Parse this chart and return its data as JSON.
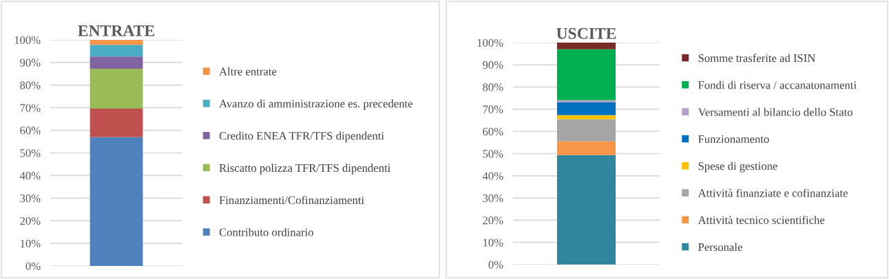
{
  "chart_data": [
    {
      "type": "bar",
      "title": "ENTRATE",
      "stacked": true,
      "categories": [
        null
      ],
      "series": [
        {
          "name": "Contributo ordinario",
          "color": "#4f81bd",
          "values": [
            57
          ]
        },
        {
          "name": "Finanziamenti/Cofinanziamenti",
          "color": "#c0504d",
          "values": [
            12.6
          ]
        },
        {
          "name": "Riscatto polizza TFR/TFS dipendenti",
          "color": "#9bbb59",
          "values": [
            17.6
          ]
        },
        {
          "name": "Credito ENEA TFR/TFS dipendenti",
          "color": "#8064a2",
          "values": [
            5.4
          ]
        },
        {
          "name": "Avanzo di amministrazione es. precedente",
          "color": "#4bacc6",
          "values": [
            5.2
          ]
        },
        {
          "name": "Altre entrate",
          "color": "#f79646",
          "values": [
            2.2
          ]
        }
      ],
      "ylim": [
        0,
        100
      ],
      "yticks": [
        {
          "value": 0,
          "label": "0%"
        },
        {
          "value": 10,
          "label": "10%"
        },
        {
          "value": 20,
          "label": "20%"
        },
        {
          "value": 30,
          "label": "30%"
        },
        {
          "value": 40,
          "label": "40%"
        },
        {
          "value": 50,
          "label": "50%"
        },
        {
          "value": 60,
          "label": "60%"
        },
        {
          "value": 70,
          "label": "70%"
        },
        {
          "value": 80,
          "label": "80%"
        },
        {
          "value": 90,
          "label": "90%"
        },
        {
          "value": 100,
          "label": "100%"
        }
      ],
      "grid": "y",
      "legend": "right",
      "tick_labels": "y"
    },
    {
      "type": "bar",
      "title": "USCITE",
      "stacked": true,
      "categories": [
        null
      ],
      "series": [
        {
          "name": "Personale",
          "color": "#31859c",
          "values": [
            49.3
          ]
        },
        {
          "name": "Attività tecnico scientifiche",
          "color": "#f79646",
          "values": [
            6.3
          ]
        },
        {
          "name": "Attività finanziate e cofinanziate",
          "color": "#a5a5a5",
          "values": [
            9.9
          ]
        },
        {
          "name": "Spese di gestione",
          "color": "#ffc000",
          "values": [
            1.8
          ]
        },
        {
          "name": "Funzionamento",
          "color": "#0070c0",
          "values": [
            5.8
          ]
        },
        {
          "name": "Versamenti al bilancio dello Stato",
          "color": "#b3a2c7",
          "values": [
            1.0
          ]
        },
        {
          "name": "Fondi di riserva / accanatonamenti",
          "color": "#00b050",
          "values": [
            22.9
          ]
        },
        {
          "name": "Somme trasferite ad ISIN",
          "color": "#772c2a",
          "values": [
            3.0
          ]
        }
      ],
      "ylim": [
        0,
        100
      ],
      "yticks": [
        {
          "value": 0,
          "label": "0%"
        },
        {
          "value": 10,
          "label": "10%"
        },
        {
          "value": 20,
          "label": "20%"
        },
        {
          "value": 30,
          "label": "30%"
        },
        {
          "value": 40,
          "label": "40%"
        },
        {
          "value": 50,
          "label": "50%"
        },
        {
          "value": 60,
          "label": "60%"
        },
        {
          "value": 70,
          "label": "70%"
        },
        {
          "value": 80,
          "label": "80%"
        },
        {
          "value": 90,
          "label": "90%"
        },
        {
          "value": 100,
          "label": "100%"
        }
      ],
      "grid": "y",
      "legend": "right",
      "tick_labels": "y"
    }
  ]
}
